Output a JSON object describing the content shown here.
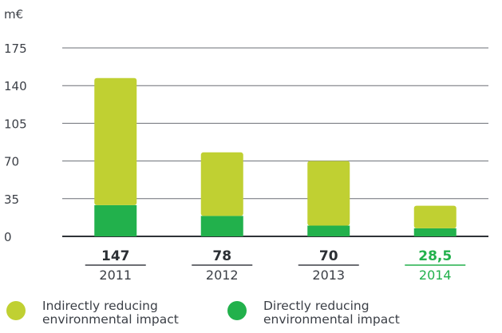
{
  "chart_data": {
    "type": "bar",
    "stacked": true,
    "unit_label": "m€",
    "categories": [
      "2011",
      "2012",
      "2013",
      "2014"
    ],
    "totals": [
      "147",
      "78",
      "70",
      "28,5"
    ],
    "series": [
      {
        "name": "Directly reducing environmental impact",
        "values": [
          29,
          19,
          10,
          7.5
        ],
        "color": "#22b14c"
      },
      {
        "name": "Indirectly reducing environmental impact",
        "values": [
          118,
          59,
          60,
          21
        ],
        "color": "#c0d032"
      }
    ],
    "ylim": [
      0,
      175
    ],
    "yticks": [
      0,
      35,
      70,
      105,
      140,
      175
    ],
    "highlight_color": "#22b14c",
    "text_color": "#3b3f46",
    "grid_color": "#6b6f76",
    "grid": true
  },
  "legend": [
    {
      "label_line1": "Indirectly reducing",
      "label_line2": "environmental impact",
      "color": "#c0d032"
    },
    {
      "label_line1": "Directly reducing",
      "label_line2": "environmental impact",
      "color": "#22b14c"
    }
  ]
}
